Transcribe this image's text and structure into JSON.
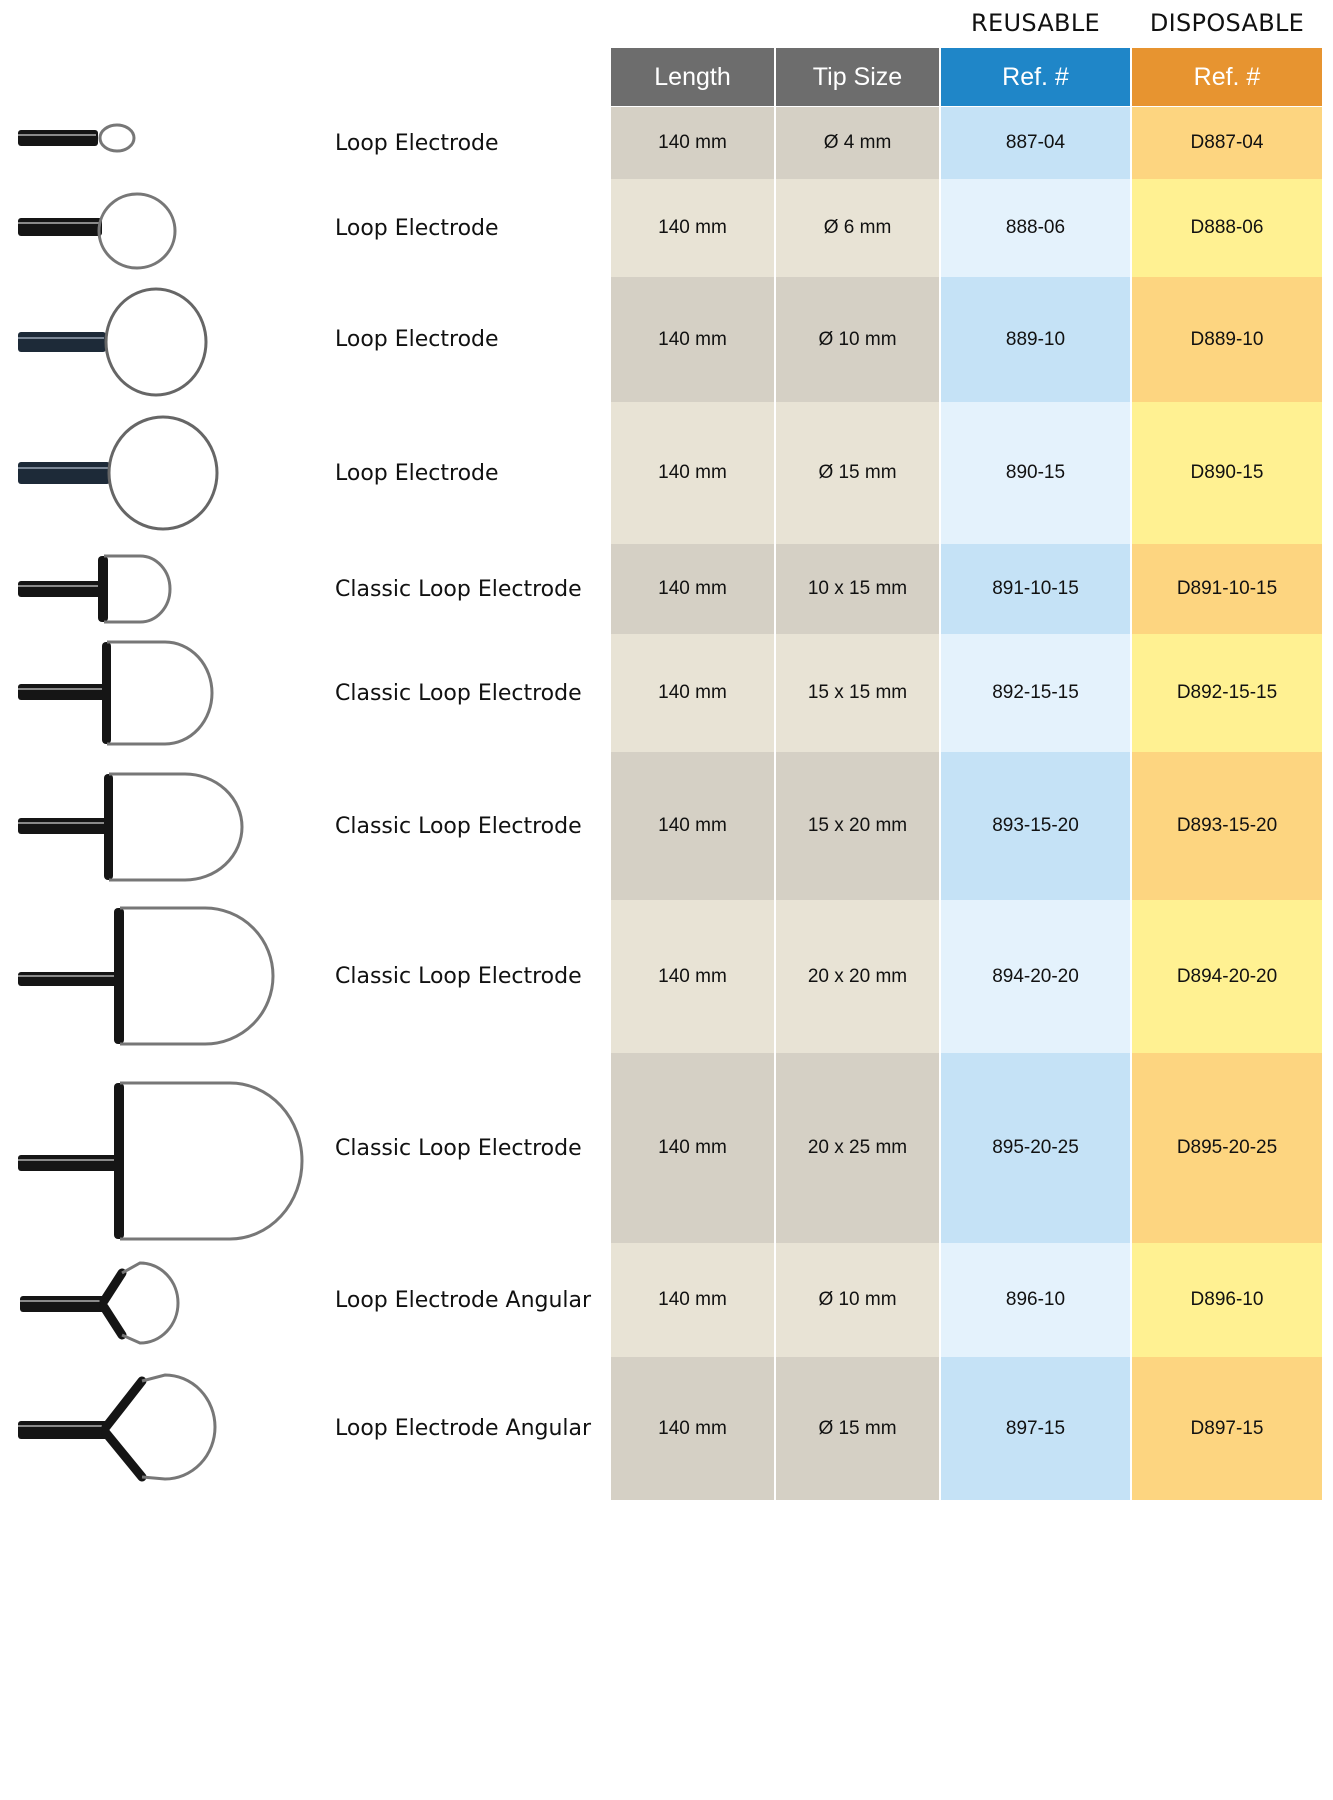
{
  "groups": {
    "reusable": "REUSABLE",
    "disposable": "DISPOSABLE"
  },
  "headers": {
    "length": "Length",
    "tip_size": "Tip Size",
    "ref_reusable": "Ref. #",
    "ref_disposable": "Ref. #"
  },
  "rows": [
    {
      "name": "Loop Electrode",
      "length": "140 mm",
      "tip": "Ø 4 mm",
      "ref": "887-04",
      "dref": "D887-04"
    },
    {
      "name": "Loop Electrode",
      "length": "140 mm",
      "tip": "Ø 6 mm",
      "ref": "888-06",
      "dref": "D888-06"
    },
    {
      "name": "Loop Electrode",
      "length": "140 mm",
      "tip": "Ø 10 mm",
      "ref": "889-10",
      "dref": "D889-10"
    },
    {
      "name": "Loop Electrode",
      "length": "140 mm",
      "tip": "Ø 15 mm",
      "ref": "890-15",
      "dref": "D890-15"
    },
    {
      "name": "Classic Loop Electrode",
      "length": "140 mm",
      "tip": "10 x 15 mm",
      "ref": "891-10-15",
      "dref": "D891-10-15"
    },
    {
      "name": "Classic Loop Electrode",
      "length": "140 mm",
      "tip": "15 x 15 mm",
      "ref": "892-15-15",
      "dref": "D892-15-15"
    },
    {
      "name": "Classic Loop Electrode",
      "length": "140 mm",
      "tip": "15 x 20 mm",
      "ref": "893-15-20",
      "dref": "D893-15-20"
    },
    {
      "name": "Classic Loop Electrode",
      "length": "140 mm",
      "tip": "20 x 20 mm",
      "ref": "894-20-20",
      "dref": "D894-20-20"
    },
    {
      "name": "Classic Loop Electrode",
      "length": "140 mm",
      "tip": "20 x 25 mm",
      "ref": "895-20-25",
      "dref": "D895-20-25"
    },
    {
      "name": "Loop Electrode Angular",
      "length": "140 mm",
      "tip": "Ø 10 mm",
      "ref": "896-10",
      "dref": "D896-10"
    },
    {
      "name": "Loop Electrode Angular",
      "length": "140 mm",
      "tip": "Ø 15 mm",
      "ref": "897-15",
      "dref": "D897-15"
    }
  ]
}
